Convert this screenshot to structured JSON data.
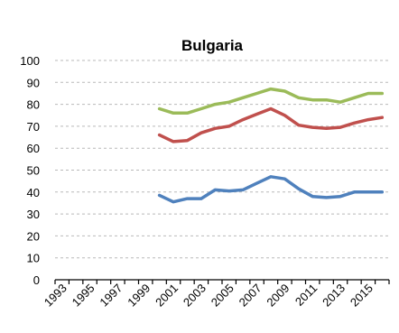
{
  "chart_data": {
    "type": "line",
    "title": "Bulgaria",
    "xlabel": "",
    "ylabel": "",
    "ylim": [
      0,
      100
    ],
    "xlim": [
      1993,
      2016
    ],
    "y_ticks": [
      0,
      10,
      20,
      30,
      40,
      50,
      60,
      70,
      80,
      90,
      100
    ],
    "x_tick_labels": [
      "1993",
      "1995",
      "1997",
      "1999",
      "2001",
      "2003",
      "2005",
      "2007",
      "2009",
      "2011",
      "2013",
      "2015"
    ],
    "grid": true,
    "legend": "none",
    "x": [
      2000,
      2001,
      2002,
      2003,
      2004,
      2005,
      2006,
      2007,
      2008,
      2009,
      2010,
      2011,
      2012,
      2013,
      2014,
      2015,
      2016
    ],
    "series": [
      {
        "color": "#9bbb59",
        "values": [
          78,
          76,
          76,
          78,
          80,
          81,
          83,
          85,
          87,
          86,
          83,
          82,
          82,
          81,
          83,
          85,
          85
        ]
      },
      {
        "color": "#c0504d",
        "values": [
          66,
          63,
          63.5,
          67,
          69,
          70,
          73,
          75.5,
          78,
          75,
          70.5,
          69.5,
          69,
          69.5,
          71.5,
          73,
          74
        ]
      },
      {
        "color": "#4f81bd",
        "values": [
          38.5,
          35.5,
          37,
          37,
          41,
          40.5,
          41,
          44,
          47,
          46,
          41.5,
          38,
          37.5,
          38,
          40,
          40,
          40
        ]
      }
    ]
  }
}
